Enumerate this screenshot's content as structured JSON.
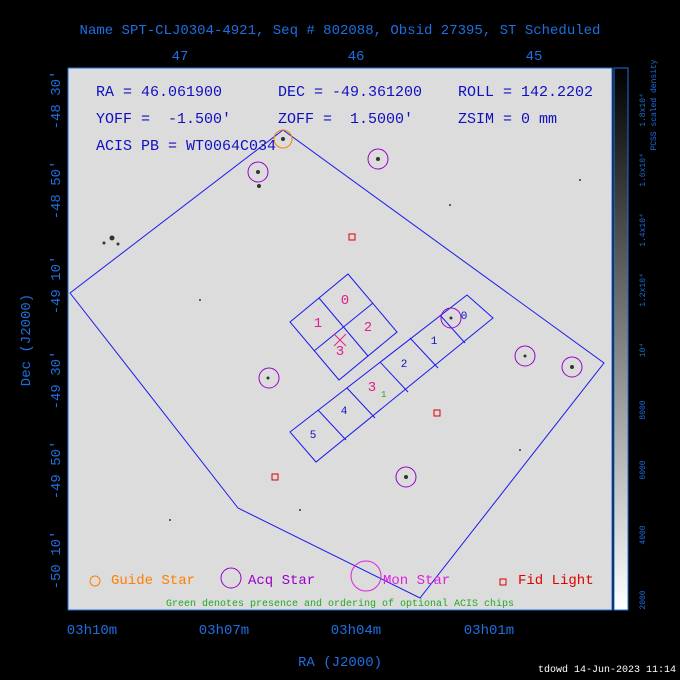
{
  "header": {
    "title": "Name SPT-CLJ0304-4921, Seq # 802088, Obsid 27395, ST Scheduled"
  },
  "top_axis": [
    "47",
    "46",
    "45"
  ],
  "left_axis": [
    "-48 30'",
    "-48 50'",
    "-49 10'",
    "-49 30'",
    "-49 50'",
    "-50 10'"
  ],
  "bottom_axis": [
    "03h10m",
    "03h07m",
    "03h04m",
    "03h01m"
  ],
  "x_label": "RA (J2000)",
  "y_label": "Dec (J2000)",
  "info": [
    "RA = 46.061900",
    "DEC = -49.361200",
    "ROLL = 142.2202",
    "YOFF =  -1.500'",
    "ZOFF =  1.5000'",
    "ZSIM = 0 mm",
    "ACIS PB = WT0064C034"
  ],
  "i_chips": [
    "0",
    "1",
    "2",
    "3"
  ],
  "s_chips": [
    "0",
    "1",
    "2",
    "3",
    "4",
    "5"
  ],
  "optional_chip": "1",
  "legend": [
    "Guide Star",
    "Acq Star",
    "Mon Star",
    "Fid Light"
  ],
  "note": "Green denotes presence and ordering of optional ACIS chips",
  "colorbar": {
    "title": "PCSS scaled density",
    "labels": [
      "2000",
      "4000",
      "6000",
      "8000",
      "10⁴",
      "1.2x10⁴",
      "1.4x10⁴",
      "1.6x10⁴",
      "1.8x10⁴"
    ]
  },
  "footer": "tdowd 14-Jun-2023 11:14"
}
